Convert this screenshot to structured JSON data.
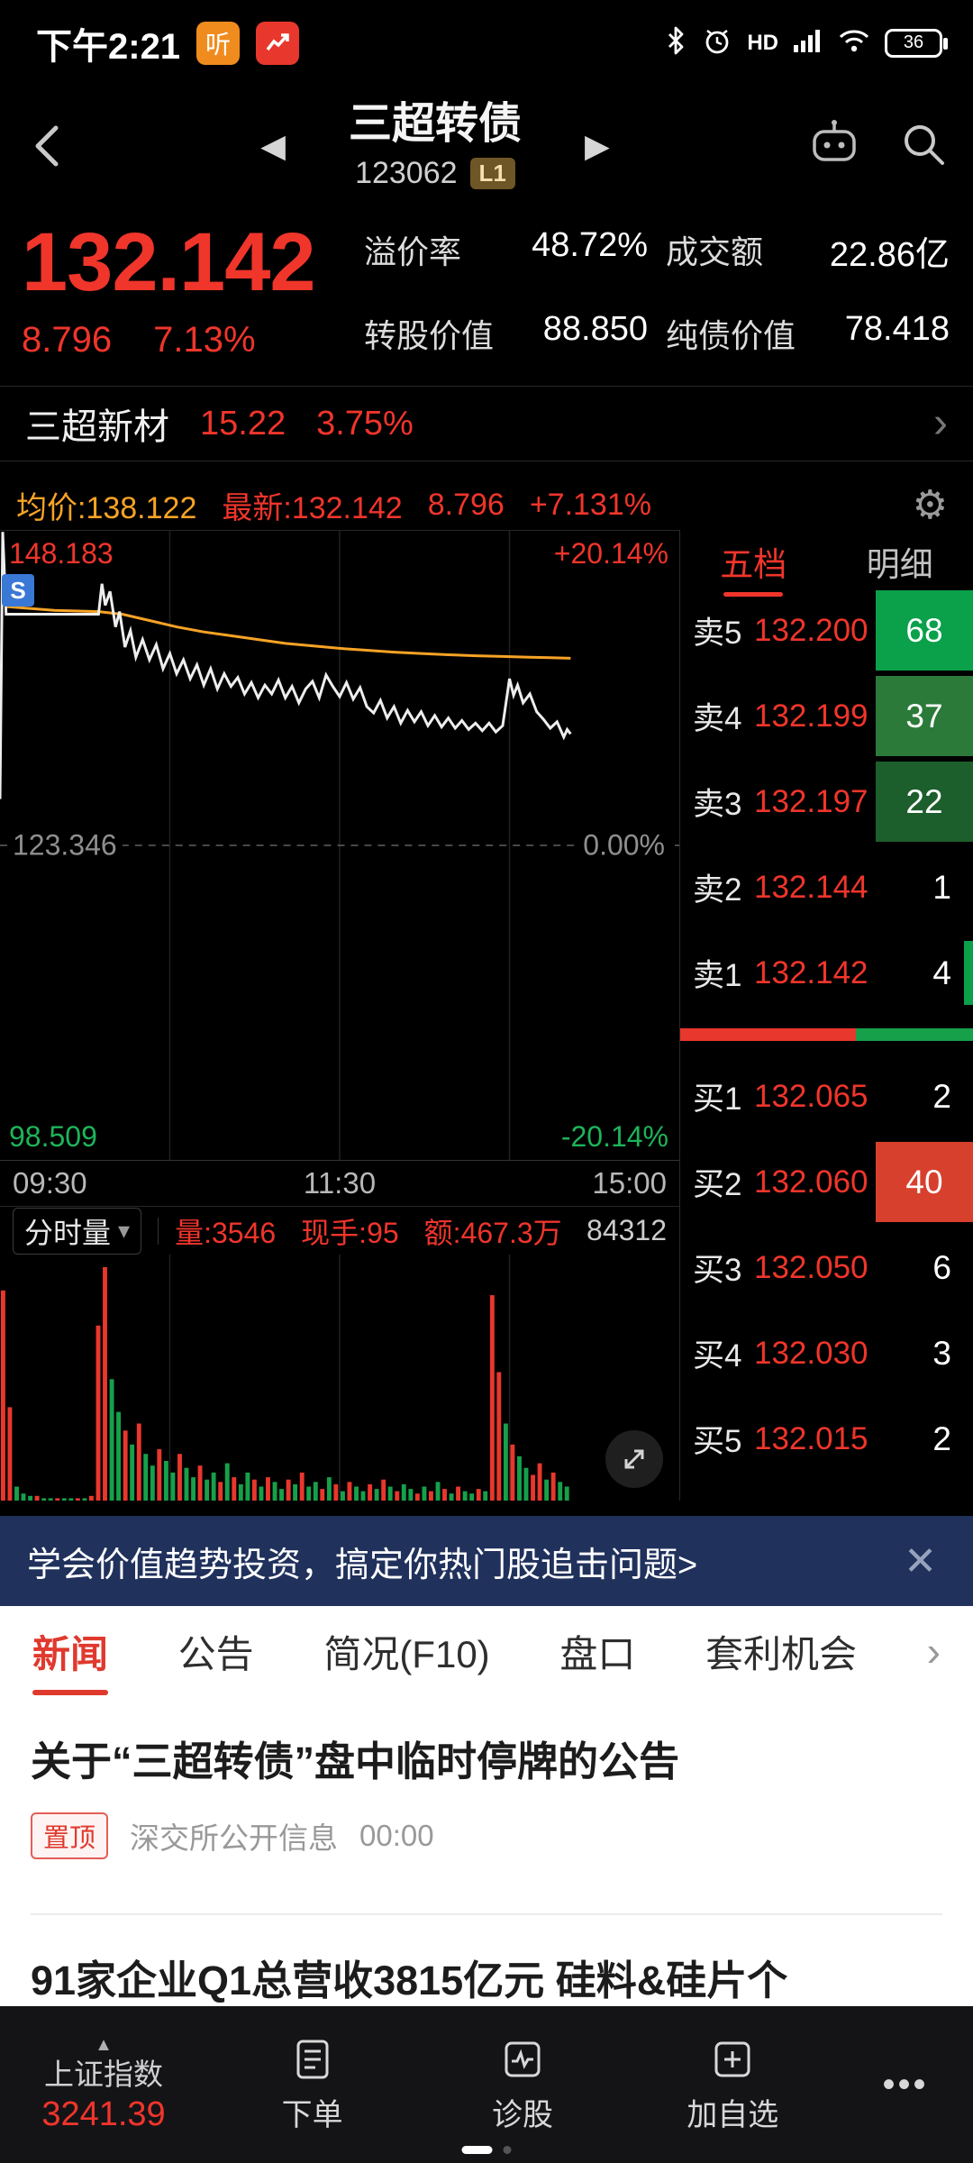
{
  "colors": {
    "red": "#f0352b",
    "bar_red": "#e8372c",
    "green": "#16a04a",
    "orange": "#f7a325"
  },
  "status_bar": {
    "time": "下午2:21",
    "float_badge": "听",
    "hd_label": "HD",
    "battery_level": "36"
  },
  "header": {
    "title": "三超转债",
    "code": "123062",
    "level_badge": "L1"
  },
  "quote": {
    "price": "132.142",
    "change": "8.796",
    "change_pct": "7.13%",
    "stats": [
      {
        "label": "溢价率",
        "value": "48.72%"
      },
      {
        "label": "成交额",
        "value": "22.86亿"
      },
      {
        "label": "转股价值",
        "value": "88.850"
      },
      {
        "label": "纯债价值",
        "value": "78.418"
      }
    ]
  },
  "underlying": {
    "name": "三超新材",
    "price": "15.22",
    "change_pct": "3.75%"
  },
  "chart_header": {
    "avg": "均价:138.122",
    "last": "最新:132.142",
    "change": "8.796",
    "change_pct": "+7.131%"
  },
  "chart_data": {
    "type": "line",
    "x_ticks": [
      "09:30",
      "11:30",
      "15:00"
    ],
    "y_axis": {
      "high": 148.183,
      "mid": 123.346,
      "low": 98.509,
      "high_label": "148.183",
      "high_pct": "+20.14%",
      "mid_label": "123.346",
      "mid_pct": "0.00%",
      "low_label": "98.509",
      "low_pct": "-20.14%"
    },
    "suspension_marker": "S",
    "price_line": [
      [
        0,
        127.0
      ],
      [
        0.4,
        148.1
      ],
      [
        0.9,
        141.6
      ],
      [
        14.5,
        141.6
      ],
      [
        15,
        144.0
      ],
      [
        15.5,
        142.3
      ],
      [
        16.2,
        143.4
      ],
      [
        17,
        140.6
      ],
      [
        17.6,
        141.8
      ],
      [
        18.4,
        139.0
      ],
      [
        19.2,
        140.3
      ],
      [
        20,
        138.2
      ],
      [
        21,
        139.6
      ],
      [
        22,
        138.0
      ],
      [
        23,
        139.2
      ],
      [
        24,
        137.3
      ],
      [
        25,
        138.5
      ],
      [
        26,
        136.9
      ],
      [
        27,
        138.0
      ],
      [
        28,
        136.5
      ],
      [
        29,
        137.6
      ],
      [
        30,
        136.0
      ],
      [
        31,
        137.3
      ],
      [
        32,
        135.7
      ],
      [
        33,
        136.9
      ],
      [
        34,
        135.9
      ],
      [
        35,
        136.6
      ],
      [
        36,
        135.3
      ],
      [
        37,
        136.2
      ],
      [
        38,
        135.0
      ],
      [
        39,
        136.0
      ],
      [
        40,
        135.3
      ],
      [
        41,
        136.4
      ],
      [
        42,
        135.0
      ],
      [
        43,
        135.9
      ],
      [
        44,
        134.6
      ],
      [
        45,
        135.7
      ],
      [
        46,
        136.3
      ],
      [
        47,
        135.0
      ],
      [
        48,
        136.8
      ],
      [
        49,
        135.9
      ],
      [
        50,
        135.1
      ],
      [
        51,
        136.2
      ],
      [
        52,
        134.9
      ],
      [
        53,
        135.8
      ],
      [
        54,
        134.3
      ],
      [
        55,
        133.8
      ],
      [
        56,
        134.8
      ],
      [
        57,
        133.4
      ],
      [
        58,
        134.3
      ],
      [
        59,
        133.0
      ],
      [
        60,
        134.0
      ],
      [
        61,
        133.1
      ],
      [
        62,
        133.9
      ],
      [
        63,
        132.8
      ],
      [
        64,
        133.6
      ],
      [
        65,
        132.7
      ],
      [
        66,
        133.4
      ],
      [
        67,
        132.6
      ],
      [
        68,
        133.2
      ],
      [
        69,
        132.5
      ],
      [
        70,
        133.0
      ],
      [
        71,
        132.4
      ],
      [
        72,
        133.0
      ],
      [
        73,
        132.3
      ],
      [
        74,
        132.8
      ],
      [
        75,
        136.5
      ],
      [
        75.6,
        135.2
      ],
      [
        76.2,
        136.0
      ],
      [
        77,
        134.6
      ],
      [
        78,
        135.3
      ],
      [
        79,
        133.9
      ],
      [
        80,
        133.3
      ],
      [
        81,
        132.6
      ],
      [
        82,
        133.1
      ],
      [
        83,
        131.9
      ],
      [
        83.5,
        132.5
      ],
      [
        84,
        132.142
      ]
    ],
    "avg_line": [
      [
        0.5,
        144.5
      ],
      [
        1,
        142.2
      ],
      [
        8,
        141.9
      ],
      [
        14.5,
        141.8
      ],
      [
        18,
        141.6
      ],
      [
        22,
        141.1
      ],
      [
        26,
        140.6
      ],
      [
        30,
        140.2
      ],
      [
        34,
        139.9
      ],
      [
        38,
        139.6
      ],
      [
        42,
        139.3
      ],
      [
        46,
        139.1
      ],
      [
        50,
        138.9
      ],
      [
        54,
        138.75
      ],
      [
        58,
        138.6
      ],
      [
        62,
        138.5
      ],
      [
        66,
        138.4
      ],
      [
        70,
        138.32
      ],
      [
        74,
        138.26
      ],
      [
        78,
        138.2
      ],
      [
        81,
        138.16
      ],
      [
        84,
        138.122
      ]
    ],
    "volume_bars": [
      [
        90,
        "r"
      ],
      [
        40,
        "r"
      ],
      [
        6,
        "g"
      ],
      [
        3,
        "g"
      ],
      [
        2,
        "g"
      ],
      [
        2,
        "r"
      ],
      [
        1,
        "g"
      ],
      [
        1,
        "g"
      ],
      [
        1,
        "r"
      ],
      [
        1,
        "g"
      ],
      [
        1,
        "g"
      ],
      [
        1,
        "r"
      ],
      [
        1,
        "g"
      ],
      [
        2,
        "r"
      ],
      [
        75,
        "r"
      ],
      [
        100,
        "r"
      ],
      [
        52,
        "g"
      ],
      [
        38,
        "g"
      ],
      [
        30,
        "r"
      ],
      [
        24,
        "g"
      ],
      [
        33,
        "r"
      ],
      [
        20,
        "g"
      ],
      [
        15,
        "g"
      ],
      [
        22,
        "r"
      ],
      [
        17,
        "g"
      ],
      [
        12,
        "g"
      ],
      [
        20,
        "r"
      ],
      [
        14,
        "g"
      ],
      [
        10,
        "g"
      ],
      [
        15,
        "r"
      ],
      [
        9,
        "g"
      ],
      [
        12,
        "g"
      ],
      [
        8,
        "r"
      ],
      [
        16,
        "g"
      ],
      [
        10,
        "r"
      ],
      [
        7,
        "g"
      ],
      [
        12,
        "g"
      ],
      [
        9,
        "r"
      ],
      [
        6,
        "g"
      ],
      [
        10,
        "r"
      ],
      [
        8,
        "g"
      ],
      [
        5,
        "g"
      ],
      [
        9,
        "r"
      ],
      [
        7,
        "g"
      ],
      [
        12,
        "r"
      ],
      [
        6,
        "g"
      ],
      [
        8,
        "g"
      ],
      [
        5,
        "r"
      ],
      [
        10,
        "g"
      ],
      [
        7,
        "r"
      ],
      [
        4,
        "g"
      ],
      [
        8,
        "r"
      ],
      [
        6,
        "g"
      ],
      [
        4,
        "g"
      ],
      [
        7,
        "r"
      ],
      [
        5,
        "g"
      ],
      [
        9,
        "r"
      ],
      [
        6,
        "g"
      ],
      [
        4,
        "r"
      ],
      [
        7,
        "g"
      ],
      [
        5,
        "g"
      ],
      [
        3,
        "r"
      ],
      [
        6,
        "g"
      ],
      [
        4,
        "r"
      ],
      [
        8,
        "g"
      ],
      [
        5,
        "r"
      ],
      [
        3,
        "g"
      ],
      [
        6,
        "r"
      ],
      [
        4,
        "g"
      ],
      [
        3,
        "g"
      ],
      [
        5,
        "r"
      ],
      [
        4,
        "g"
      ],
      [
        88,
        "r"
      ],
      [
        55,
        "r"
      ],
      [
        33,
        "g"
      ],
      [
        24,
        "r"
      ],
      [
        19,
        "g"
      ],
      [
        14,
        "g"
      ],
      [
        11,
        "r"
      ],
      [
        16,
        "r"
      ],
      [
        9,
        "g"
      ],
      [
        12,
        "r"
      ],
      [
        8,
        "g"
      ],
      [
        6,
        "g"
      ]
    ]
  },
  "volume_panel": {
    "selector": "分时量",
    "volume": "量:3546",
    "hands": "现手:95",
    "amount": "额:467.3万",
    "scale_value": "84312"
  },
  "order_book": {
    "tabs": [
      {
        "label": "五档"
      },
      {
        "label": "明细"
      }
    ],
    "asks": [
      {
        "label": "卖5",
        "price": "132.200",
        "qty": "68",
        "bg": "#0ba04a"
      },
      {
        "label": "卖4",
        "price": "132.199",
        "qty": "37",
        "bg": "#2c7a39"
      },
      {
        "label": "卖3",
        "price": "132.197",
        "qty": "22",
        "bg": "#1d5f2c"
      },
      {
        "label": "卖2",
        "price": "132.144",
        "qty": "1"
      },
      {
        "label": "卖1",
        "price": "132.142",
        "qty": "4",
        "edge": "#0ba04a"
      }
    ],
    "ratio": {
      "red_pct": 60,
      "green_pct": 40
    },
    "bids": [
      {
        "label": "买1",
        "price": "132.065",
        "qty": "2"
      },
      {
        "label": "买2",
        "price": "132.060",
        "qty": "40",
        "bg": "#d8402e"
      },
      {
        "label": "买3",
        "price": "132.050",
        "qty": "6"
      },
      {
        "label": "买4",
        "price": "132.030",
        "qty": "3"
      },
      {
        "label": "买5",
        "price": "132.015",
        "qty": "2"
      }
    ]
  },
  "banner": {
    "text": "学会价值趋势投资，搞定你热门股追击问题>",
    "close": "✕"
  },
  "news": {
    "tabs": [
      {
        "label": "新闻"
      },
      {
        "label": "公告"
      },
      {
        "label": "简况(F10)"
      },
      {
        "label": "盘口"
      },
      {
        "label": "套利机会"
      }
    ],
    "articles": [
      {
        "title": "关于“三超转债”盘中临时停牌的公告",
        "badge": "置顶",
        "source": "深交所公开信息",
        "time": "00:00"
      },
      {
        "title": "91家企业Q1总营收3815亿元 硅料&硅片个"
      }
    ]
  },
  "bottom_nav": {
    "index_name": "上证指数",
    "index_value": "3241.39",
    "items": [
      {
        "label": "下单"
      },
      {
        "label": "诊股"
      },
      {
        "label": "加自选"
      }
    ]
  },
  "glyphs": {
    "prev": "◀",
    "next": "▶",
    "gear": "⚙",
    "chevron": "›",
    "caret_down": "▾",
    "close": "✕",
    "more": "•••",
    "up_caret": "▲"
  }
}
